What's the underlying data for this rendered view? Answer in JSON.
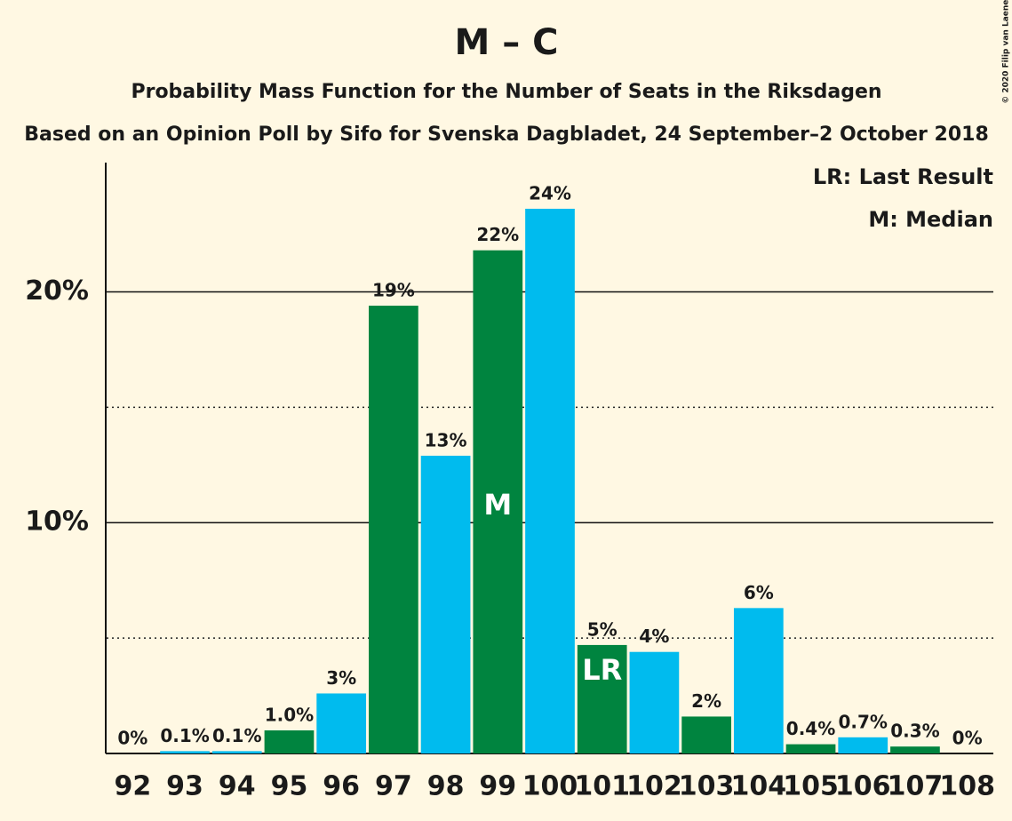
{
  "chart_data": {
    "type": "bar",
    "title": "M – C",
    "subtitle": "Probability Mass Function for the Number of Seats in the Riksdagen",
    "subtitle2": "Based on an Opinion Poll by Sifo for Svenska Dagbladet, 24 September–2 October 2018",
    "copyright": "© 2020 Filip van Laenen",
    "legend": [
      "LR: Last Result",
      "M: Median"
    ],
    "legend_position": "top-right",
    "categories": [
      "92",
      "93",
      "94",
      "95",
      "96",
      "97",
      "98",
      "99",
      "100",
      "101",
      "102",
      "103",
      "104",
      "105",
      "106",
      "107",
      "108"
    ],
    "values": [
      0,
      0.1,
      0.1,
      1.0,
      2.6,
      19.4,
      12.9,
      21.8,
      23.6,
      4.7,
      4.4,
      1.6,
      6.3,
      0.4,
      0.7,
      0.3,
      0
    ],
    "value_labels": [
      "0%",
      "0.1%",
      "0.1%",
      "1.0%",
      "3%",
      "19%",
      "13%",
      "22%",
      "24%",
      "5%",
      "4%",
      "2%",
      "6%",
      "0.4%",
      "0.7%",
      "0.3%",
      "0%"
    ],
    "colors": [
      "#00843f",
      "#00bbee",
      "#00bbee",
      "#00843f",
      "#00bbee",
      "#00843f",
      "#00bbee",
      "#00843f",
      "#00bbee",
      "#00843f",
      "#00bbee",
      "#00843f",
      "#00bbee",
      "#00843f",
      "#00bbee",
      "#00843f",
      "#00bbee"
    ],
    "bar_labels": [
      null,
      null,
      null,
      null,
      null,
      null,
      null,
      "M",
      null,
      "LR",
      null,
      null,
      null,
      null,
      null,
      null,
      null
    ],
    "ylim": [
      0,
      25.6
    ],
    "yticks": [
      {
        "value": 10,
        "label": "10%"
      },
      {
        "value": 20,
        "label": "20%"
      }
    ],
    "minor_yticks": [
      5,
      15
    ],
    "grid": true
  }
}
